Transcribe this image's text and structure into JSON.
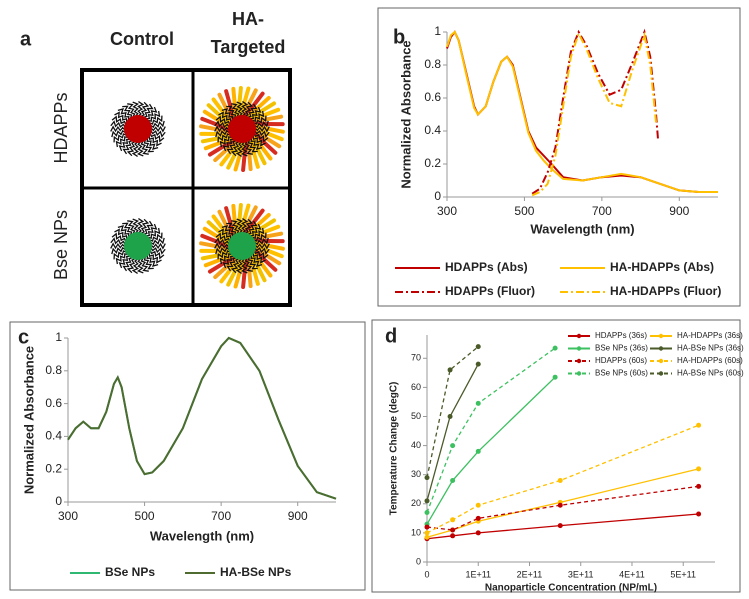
{
  "diagram": {
    "label": "a",
    "column_labels": [
      "Control",
      [
        "HA-",
        "Targeted"
      ]
    ],
    "row_labels": [
      "HDAPPs",
      "Bse NPs"
    ],
    "row_colors": [
      "#c00000",
      "#1fa34a"
    ]
  },
  "chart_data": [
    {
      "type": "line",
      "label": "b",
      "ylabel": "Normalized Absorbance",
      "xlabel": "Wavelength (nm)",
      "xlim": [
        300,
        1000
      ],
      "xticks": [
        300,
        500,
        700,
        900
      ],
      "ylim": [
        0,
        1
      ],
      "yticks": [
        0,
        0.2,
        0.4,
        0.6,
        0.8,
        1
      ],
      "series": [
        {
          "name": "HDAPPs (Abs)",
          "color": "#c00000",
          "dash": "solid",
          "x": [
            300,
            310,
            320,
            330,
            350,
            370,
            380,
            400,
            420,
            440,
            455,
            470,
            490,
            510,
            530,
            550,
            570,
            600,
            650,
            700,
            750,
            800,
            850,
            900,
            950,
            1000
          ],
          "values": [
            0.9,
            0.97,
            1,
            0.95,
            0.75,
            0.55,
            0.5,
            0.55,
            0.7,
            0.82,
            0.85,
            0.8,
            0.6,
            0.4,
            0.3,
            0.25,
            0.2,
            0.12,
            0.1,
            0.12,
            0.13,
            0.12,
            0.08,
            0.04,
            0.03,
            0.03
          ]
        },
        {
          "name": "HA-HDAPPs (Abs)",
          "color": "#ffc000",
          "dash": "solid",
          "x": [
            300,
            310,
            320,
            330,
            350,
            370,
            380,
            400,
            420,
            440,
            455,
            470,
            490,
            510,
            530,
            550,
            570,
            600,
            650,
            700,
            750,
            800,
            850,
            900,
            950,
            1000
          ],
          "values": [
            0.91,
            0.98,
            1,
            0.95,
            0.74,
            0.54,
            0.5,
            0.55,
            0.7,
            0.82,
            0.85,
            0.79,
            0.59,
            0.39,
            0.28,
            0.22,
            0.17,
            0.11,
            0.1,
            0.12,
            0.14,
            0.12,
            0.08,
            0.04,
            0.03,
            0.03
          ]
        },
        {
          "name": "HDAPPs (Fluor)",
          "color": "#c00000",
          "dash": "dashdot",
          "x": [
            520,
            540,
            560,
            580,
            600,
            620,
            640,
            660,
            690,
            720,
            750,
            780,
            810,
            825,
            840,
            845
          ],
          "values": [
            0.02,
            0.05,
            0.15,
            0.3,
            0.6,
            0.88,
            1,
            0.92,
            0.75,
            0.62,
            0.65,
            0.82,
            1,
            0.85,
            0.5,
            0.35
          ]
        },
        {
          "name": "HA-HDAPPs (Fluor)",
          "color": "#ffc000",
          "dash": "dashdot",
          "x": [
            520,
            540,
            560,
            580,
            600,
            620,
            640,
            660,
            690,
            720,
            750,
            780,
            810,
            825,
            840
          ],
          "values": [
            0.01,
            0.03,
            0.08,
            0.25,
            0.55,
            0.85,
            0.99,
            0.9,
            0.72,
            0.57,
            0.55,
            0.78,
            0.98,
            0.8,
            0.45
          ]
        }
      ]
    },
    {
      "type": "line",
      "label": "c",
      "ylabel": "Normalized Absorbance",
      "xlabel": "Wavelength (nm)",
      "xlim": [
        300,
        1000
      ],
      "xticks": [
        300,
        500,
        700,
        900
      ],
      "ylim": [
        0,
        1
      ],
      "yticks": [
        0,
        0.2,
        0.4,
        0.6,
        0.8,
        1
      ],
      "series": [
        {
          "name": "BSe NPs",
          "color": "#2eb872",
          "dash": "solid",
          "x": [
            300,
            320,
            340,
            360,
            380,
            400,
            420,
            430,
            440,
            460,
            480,
            500,
            520,
            550,
            600,
            650,
            700,
            720,
            750,
            800,
            850,
            900,
            950,
            1000
          ],
          "values": [
            0.38,
            0.45,
            0.49,
            0.45,
            0.45,
            0.55,
            0.72,
            0.76,
            0.7,
            0.45,
            0.25,
            0.17,
            0.18,
            0.25,
            0.45,
            0.75,
            0.95,
            1,
            0.97,
            0.8,
            0.5,
            0.22,
            0.06,
            0.02
          ]
        },
        {
          "name": "HA-BSe NPs",
          "color": "#4e6b30",
          "dash": "solid",
          "x": [
            300,
            320,
            340,
            360,
            380,
            400,
            420,
            430,
            440,
            460,
            480,
            500,
            520,
            550,
            600,
            650,
            700,
            720,
            750,
            800,
            850,
            900,
            950,
            1000
          ],
          "values": [
            0.38,
            0.45,
            0.49,
            0.45,
            0.45,
            0.55,
            0.72,
            0.76,
            0.7,
            0.45,
            0.25,
            0.17,
            0.18,
            0.25,
            0.45,
            0.75,
            0.95,
            1,
            0.97,
            0.8,
            0.5,
            0.22,
            0.06,
            0.02
          ]
        }
      ]
    },
    {
      "type": "scatter-line",
      "label": "d",
      "ylabel": "Temperature Change (degC)",
      "xlabel": "Nanoparticle Concentration (NP/mL)",
      "xlim": [
        0,
        562000000000
      ],
      "xticks": [
        0,
        {
          "value": 100000000000,
          "label": "1E+11"
        },
        {
          "value": 200000000000,
          "label": "2E+11"
        },
        {
          "value": 300000000000,
          "label": "3E+11"
        },
        {
          "value": 400000000000,
          "label": "4E+11"
        },
        {
          "value": 500000000000,
          "label": "5E+11"
        }
      ],
      "ylim": [
        0,
        78
      ],
      "yticks": [
        0,
        10,
        20,
        30,
        40,
        50,
        60,
        70
      ],
      "series": [
        {
          "name": "HDAPPs (36s)",
          "color": "#c00000",
          "dash": "solid",
          "x": [
            0,
            50000000000,
            100000000000,
            260000000000,
            530000000000
          ],
          "values": [
            8,
            9,
            10,
            12.5,
            16.5
          ]
        },
        {
          "name": "HA-HDAPPs (36s)",
          "color": "#ffc000",
          "dash": "solid",
          "x": [
            0,
            50000000000,
            100000000000,
            260000000000,
            530000000000
          ],
          "values": [
            8.5,
            11,
            14,
            20.5,
            32
          ]
        },
        {
          "name": "BSe NPs (36s)",
          "color": "#3cc060",
          "dash": "solid",
          "x": [
            0,
            50000000000,
            100000000000,
            250000000000
          ],
          "values": [
            13,
            28,
            38,
            63.5
          ]
        },
        {
          "name": "HA-BSe NPs (36s)",
          "color": "#4a5a28",
          "dash": "solid",
          "x": [
            0,
            45000000000,
            100000000000
          ],
          "values": [
            21,
            50,
            68
          ]
        },
        {
          "name": "HDAPPs (60s)",
          "color": "#c00000",
          "dash": "dashed",
          "x": [
            0,
            50000000000,
            100000000000,
            260000000000,
            530000000000
          ],
          "values": [
            12,
            11,
            15,
            19.5,
            26
          ]
        },
        {
          "name": "HA-HDAPPs (60s)",
          "color": "#ffc000",
          "dash": "dashed",
          "x": [
            0,
            50000000000,
            100000000000,
            260000000000,
            530000000000
          ],
          "values": [
            10,
            14.5,
            19.5,
            28,
            47
          ]
        },
        {
          "name": "BSe NPs (60s)",
          "color": "#3cc060",
          "dash": "dashed",
          "x": [
            0,
            50000000000,
            100000000000,
            250000000000
          ],
          "values": [
            17,
            40,
            54.5,
            73.5
          ]
        },
        {
          "name": "HA-BSe NPs (60s)",
          "color": "#4a5a28",
          "dash": "dashed",
          "x": [
            0,
            45000000000,
            100000000000
          ],
          "values": [
            29,
            66,
            74
          ]
        }
      ]
    }
  ]
}
